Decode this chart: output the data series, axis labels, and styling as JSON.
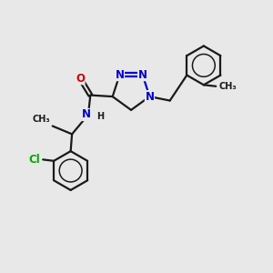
{
  "bg_color": "#e8e8e8",
  "bond_color": "#1a1a1a",
  "nitrogen_color": "#0000cc",
  "oxygen_color": "#cc0000",
  "chlorine_color": "#00aa00",
  "line_width": 1.6,
  "font_size_atom": 8.5,
  "font_size_small": 7.0,
  "xlim": [
    0,
    10
  ],
  "ylim": [
    0,
    10
  ]
}
